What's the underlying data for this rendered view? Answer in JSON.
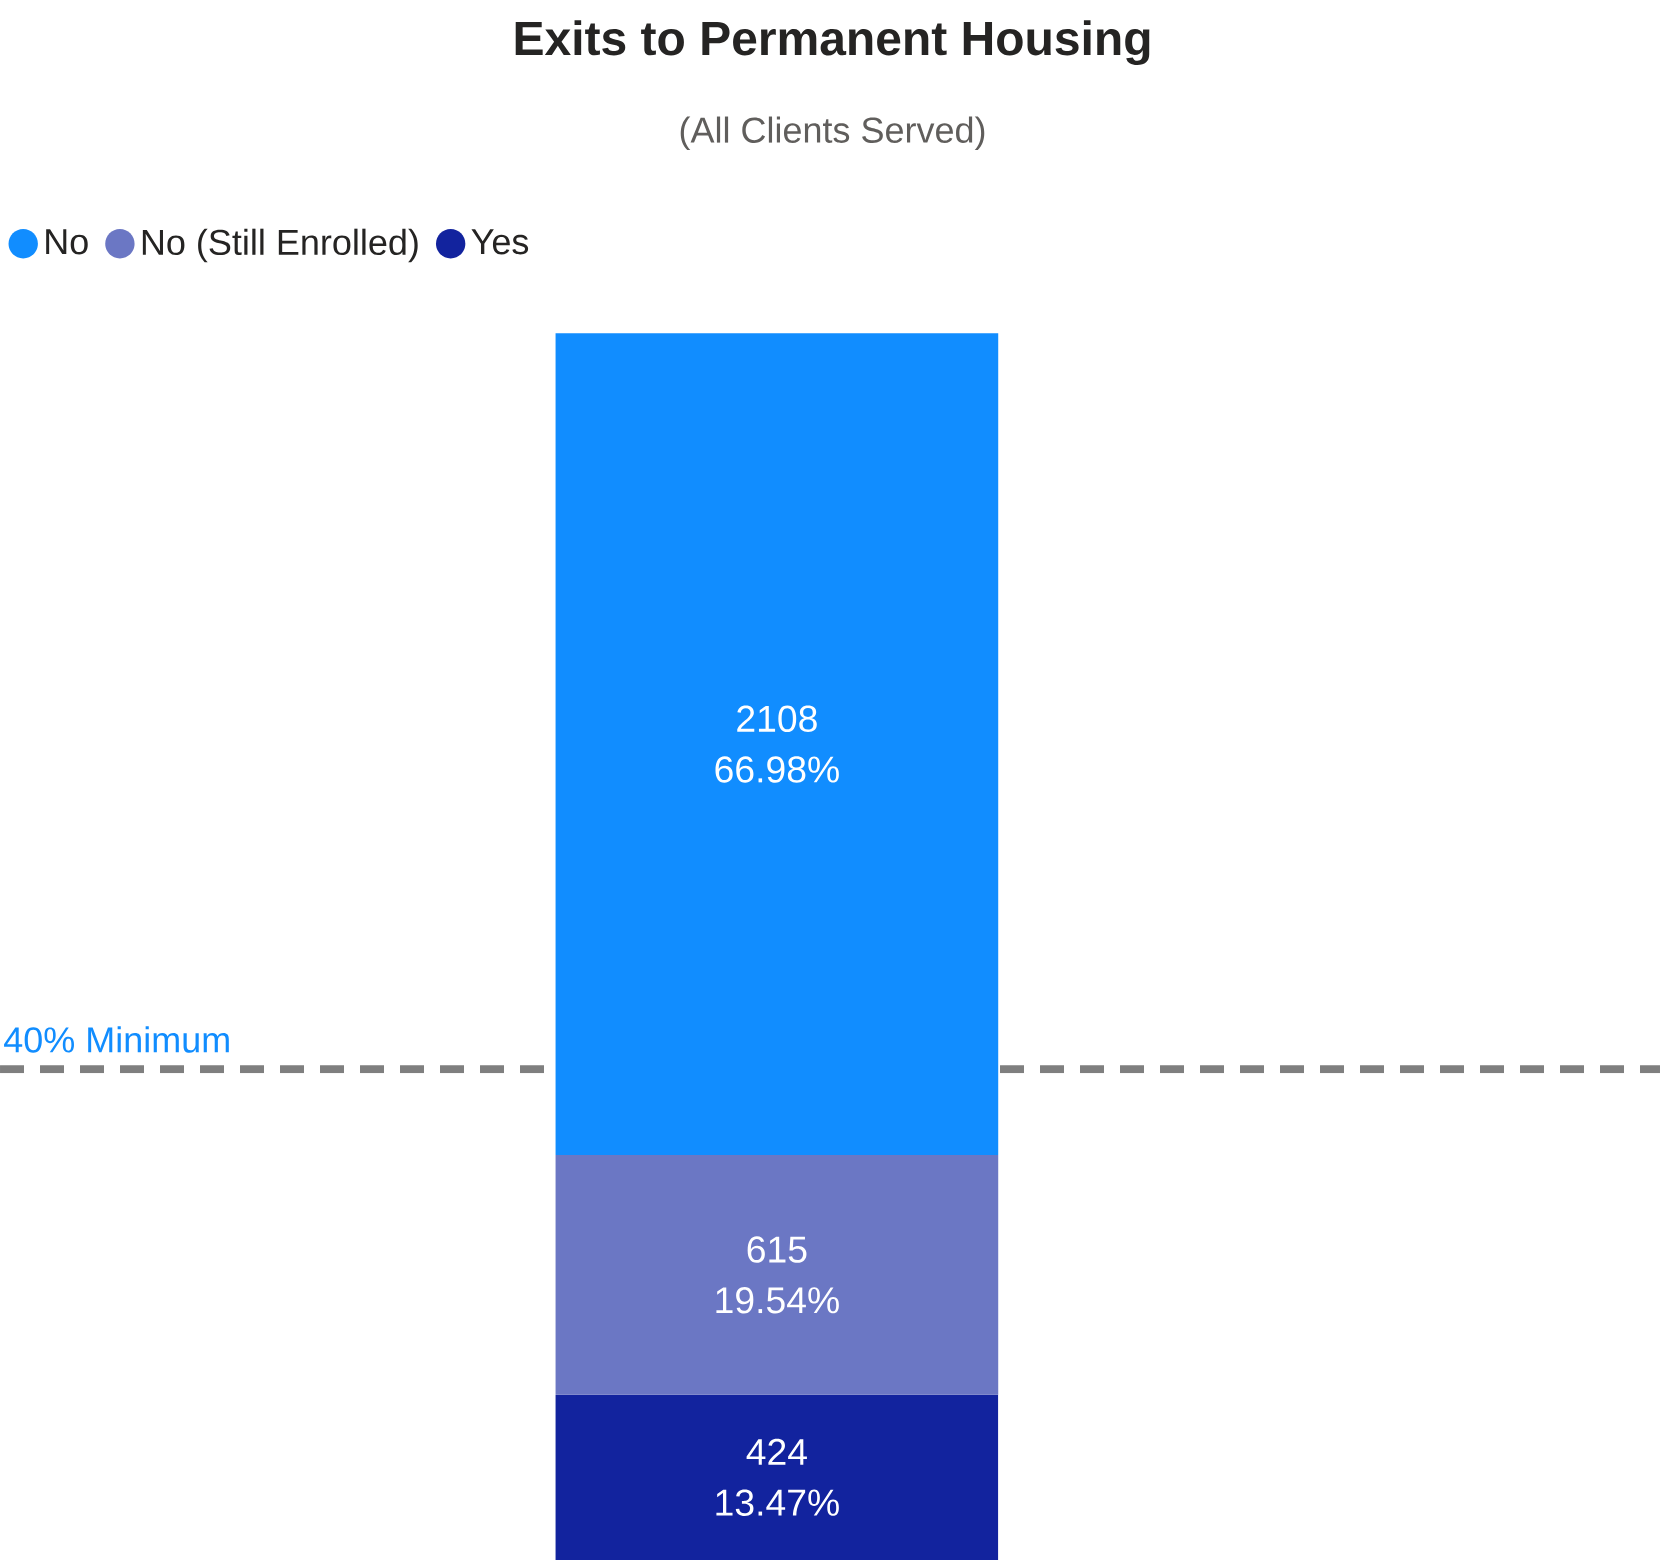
{
  "chart_data": {
    "type": "bar",
    "title": "Exits to Permanent Housing",
    "subtitle": "(All Clients Served)",
    "categories": [
      null
    ],
    "stacked": true,
    "legend": "top left",
    "series": [
      {
        "name": "Yes",
        "color": "#12239e",
        "values": [
          13.47
        ],
        "value_labels": [
          "424 13.47%"
        ]
      },
      {
        "name": "No (Still Enrolled)",
        "color": "#6b77c4",
        "values": [
          19.54
        ],
        "value_labels": [
          "615 19.54%"
        ]
      },
      {
        "name": "No",
        "color": "#118dff",
        "values": [
          66.98
        ],
        "value_labels": [
          "2108 66.98%"
        ]
      }
    ],
    "ref_lines": [
      {
        "axis": "y",
        "value": 40,
        "label": "40% Minimum",
        "color": "#7f7f7f",
        "line_style": "dashed"
      }
    ]
  }
}
